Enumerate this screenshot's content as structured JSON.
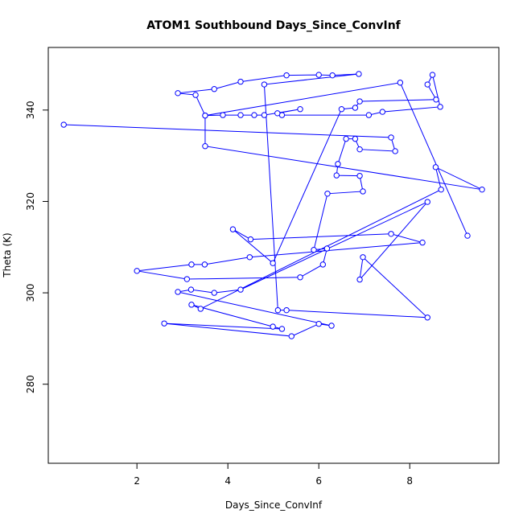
{
  "chart_data": {
    "type": "line",
    "title": "ATOM1 Southbound Days_Since_ConvInf",
    "x_label": "Days_Since_ConvInf",
    "y_label": "Theta (K)",
    "color": "#0000ff",
    "x": [
      0.39,
      7.59,
      7.68,
      6.9,
      6.8,
      6.6,
      6.42,
      6.39,
      6.9,
      6.97,
      6.19,
      5.89,
      6.18,
      6.09,
      5.59,
      3.1,
      2.0,
      3.2,
      3.49,
      4.48,
      8.28,
      7.59,
      4.5,
      4.11,
      4.99,
      6.5,
      6.8,
      6.9,
      8.58,
      8.39,
      8.5,
      8.67,
      7.4,
      7.1,
      5.19,
      5.09,
      5.59,
      4.8,
      4.58,
      4.28,
      3.89,
      3.5,
      3.5,
      9.59,
      8.57,
      8.69,
      3.4,
      3.2,
      4.99,
      5.19,
      2.6,
      5.4,
      6.0,
      6.28,
      2.9,
      3.19,
      3.7,
      4.28,
      8.39,
      6.9,
      6.97,
      8.39,
      5.29,
      5.1,
      4.8,
      6.88,
      6.3,
      6.0,
      5.29,
      4.28,
      3.7,
      2.9,
      3.29,
      3.5,
      7.79,
      9.27
    ],
    "series": [
      {
        "values": [
          336.8,
          334.0,
          331.0,
          331.4,
          333.7,
          333.7,
          328.2,
          325.7,
          325.6,
          322.2,
          321.7,
          309.4,
          309.7,
          306.2,
          303.4,
          303.0,
          304.8,
          306.2,
          306.2,
          307.8,
          311.0,
          312.9,
          311.7,
          313.9,
          306.5,
          340.2,
          340.5,
          341.9,
          342.3,
          345.6,
          347.7,
          340.7,
          339.6,
          338.9,
          338.9,
          339.3,
          340.2,
          338.9,
          338.9,
          338.9,
          338.9,
          338.8,
          332.1,
          322.6,
          327.5,
          322.6,
          296.5,
          297.4,
          292.6,
          292.1,
          293.3,
          290.5,
          293.2,
          292.8,
          300.2,
          300.7,
          300.0,
          300.7,
          319.9,
          302.9,
          307.8,
          294.6,
          296.2,
          296.2,
          345.6,
          347.9,
          347.6,
          347.7,
          347.6,
          346.2,
          344.6,
          343.7,
          343.3,
          338.8,
          346.0,
          312.5
        ]
      }
    ],
    "xlim": [
      0.05,
      9.96
    ],
    "ylim": [
      262.7,
      353.7
    ],
    "xticks": [
      2,
      4,
      6,
      8
    ],
    "yticks": [
      280,
      300,
      320,
      340
    ]
  }
}
